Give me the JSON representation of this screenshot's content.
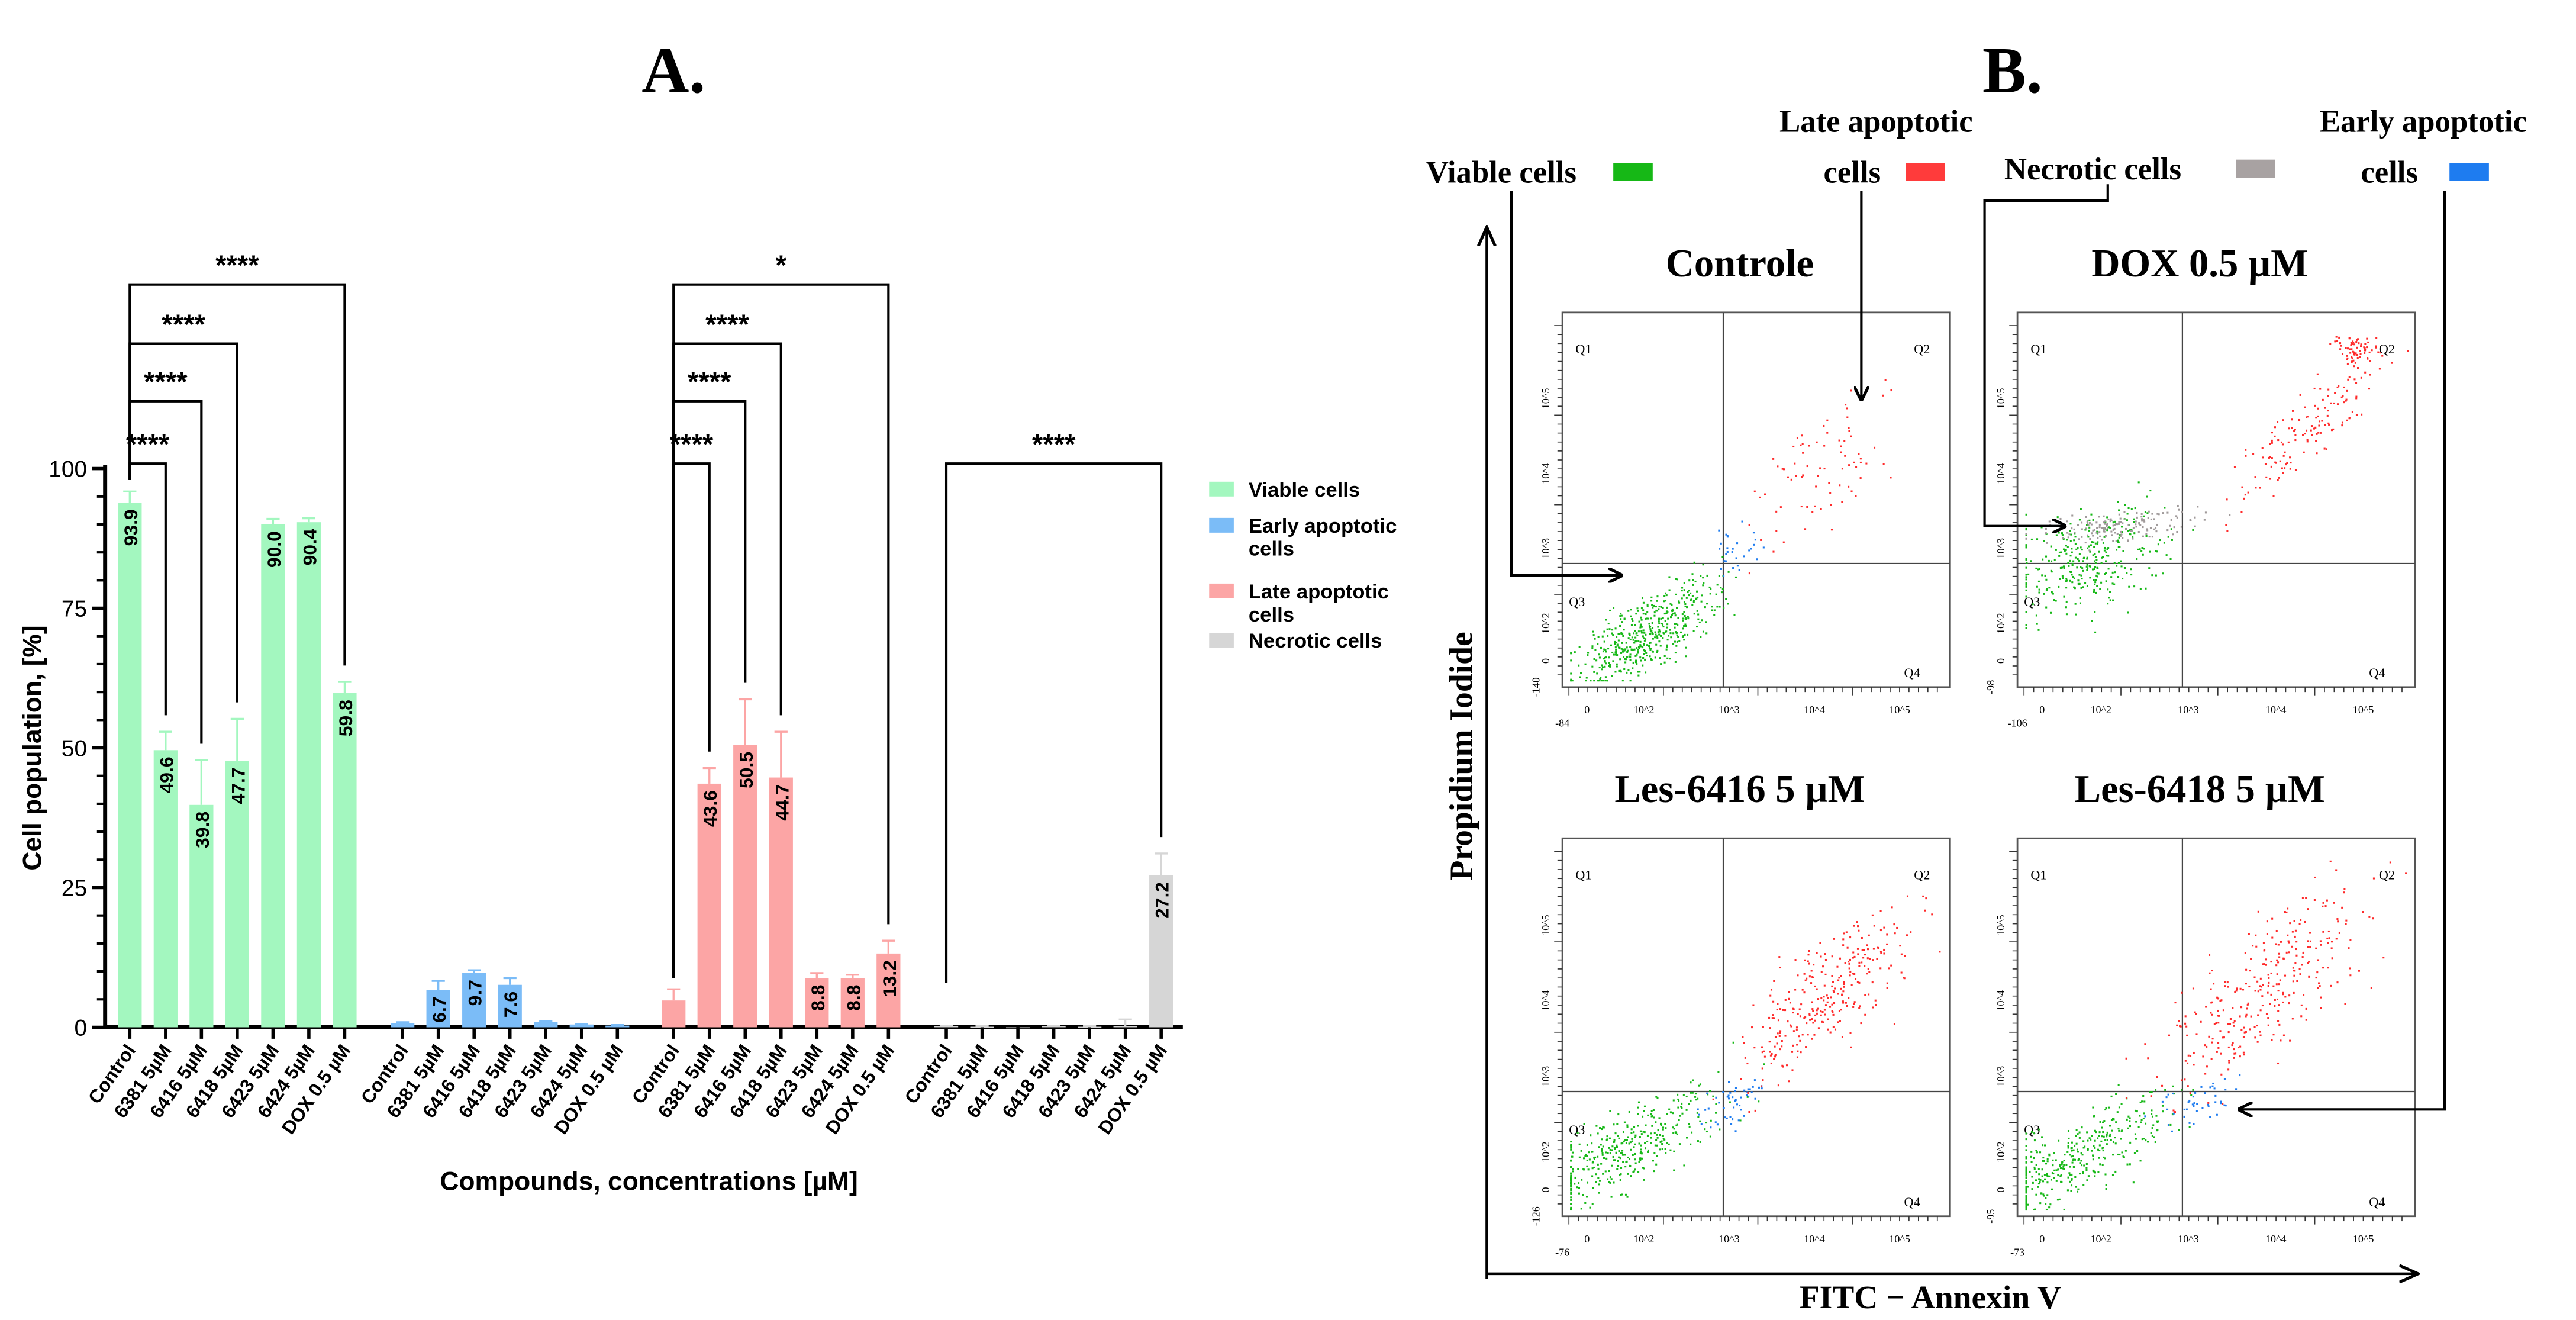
{
  "panel_a_title": "A.",
  "panel_b_title": "B.",
  "chart_data": {
    "type": "bar",
    "title": "A.",
    "xlabel": "Compounds, concentrations [µM]",
    "ylabel": "Cell population, [%]",
    "ylim": [
      0,
      100
    ],
    "yticks": [
      "0",
      "25",
      "50",
      "75",
      "100"
    ],
    "categories": [
      "Control",
      "6381 5µM",
      "6416 5µM",
      "6418 5µM",
      "6423 5µM",
      "6424 5µM",
      "DOX 0.5 µM"
    ],
    "legend_position": "right",
    "series": [
      {
        "name": "Viable cells",
        "color": "#a3f7bf",
        "values": [
          93.9,
          49.6,
          39.8,
          47.7,
          90.0,
          90.4,
          59.8
        ],
        "errors": [
          2.0,
          3.3,
          8.0,
          7.5,
          1.0,
          0.7,
          2.0
        ],
        "labels": [
          "93.9",
          "49.6",
          "39.8",
          "47.7",
          "90.0",
          "90.4",
          "59.8"
        ]
      },
      {
        "name": "Early apoptotic cells",
        "color": "#7bbcf7",
        "values": [
          0.7,
          6.7,
          9.7,
          7.6,
          0.9,
          0.5,
          0.3
        ],
        "errors": [
          0.2,
          1.6,
          0.5,
          1.2,
          0.2,
          0.1,
          0.1
        ],
        "labels": [
          "",
          "6.7",
          "9.7",
          "7.6",
          "",
          "",
          ""
        ]
      },
      {
        "name": "Late apoptotic cells",
        "color": "#fca5a5",
        "values": [
          4.8,
          43.6,
          50.5,
          44.7,
          8.8,
          8.8,
          13.2
        ],
        "errors": [
          2.0,
          2.8,
          8.2,
          8.2,
          0.9,
          0.6,
          2.3
        ],
        "labels": [
          "",
          "43.6",
          "50.5",
          "44.7",
          "8.8",
          "8.8",
          "13.2"
        ]
      },
      {
        "name": "Necrotic cells",
        "color": "#d6d6d6",
        "values": [
          0.2,
          0.1,
          0.0,
          0.2,
          0.1,
          0.2,
          27.2
        ],
        "errors": [
          0.1,
          0.1,
          0.0,
          0.1,
          0.1,
          1.2,
          3.9
        ],
        "labels": [
          "",
          "",
          "",
          "",
          "",
          "",
          "27.2"
        ]
      }
    ],
    "legend": [
      "Viable cells",
      "Early apoptotic",
      "cells",
      "Late apoptotic",
      "cells",
      "Necrotic cells"
    ],
    "significance": [
      {
        "series": 0,
        "from": 0,
        "to": 1,
        "label": "****",
        "level": 0
      },
      {
        "series": 0,
        "from": 0,
        "to": 2,
        "label": "****",
        "level": 1
      },
      {
        "series": 0,
        "from": 0,
        "to": 3,
        "label": "****",
        "level": 2
      },
      {
        "series": 0,
        "from": 0,
        "to": 6,
        "label": "****",
        "level": 3
      },
      {
        "series": 2,
        "from": 0,
        "to": 1,
        "label": "****",
        "level": 0
      },
      {
        "series": 2,
        "from": 0,
        "to": 2,
        "label": "****",
        "level": 1
      },
      {
        "series": 2,
        "from": 0,
        "to": 3,
        "label": "****",
        "level": 2
      },
      {
        "series": 2,
        "from": 0,
        "to": 6,
        "label": "*",
        "level": 3
      },
      {
        "series": 3,
        "from": 0,
        "to": 6,
        "label": "****",
        "level": 0
      }
    ]
  },
  "flow": {
    "y_axis_label": "Propidium Iodide",
    "x_axis_label": "FITC − Annexin V",
    "annotations": {
      "viable": "Viable cells",
      "late_line1": "Late apoptotic",
      "late_line2": "cells",
      "necrotic": "Necrotic cells",
      "early_line1": "Early apoptotic",
      "early_line2": "cells"
    },
    "colors": {
      "viable": "#16b816",
      "late": "#ff2a2a",
      "necrotic": "#a09a9a",
      "early": "#1e7cf0"
    },
    "quadrants": [
      "Q1",
      "Q2",
      "Q3",
      "Q4"
    ],
    "decades": [
      "10",
      "10",
      "10",
      "10"
    ],
    "decade_exponents": [
      "2",
      "3",
      "4",
      "5"
    ],
    "zero": "0",
    "plots": [
      {
        "title": "Controle",
        "x_min": "-84",
        "y_min": "-140"
      },
      {
        "title": "DOX 0.5 µM",
        "x_min": "-106",
        "y_min": "-98"
      },
      {
        "title": "Les-6416 5 µM",
        "x_min": "-76",
        "y_min": "-126"
      },
      {
        "title": "Les-6418 5 µM",
        "x_min": "-73",
        "y_min": "-95"
      }
    ]
  }
}
